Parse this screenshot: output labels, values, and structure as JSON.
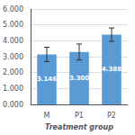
{
  "chart_data": {
    "type": "bar",
    "xlabel": "Treatment group",
    "categories": [
      "M",
      "P1",
      "P2"
    ],
    "values": [
      3.146,
      3.3,
      4.388
    ],
    "errors": [
      0.45,
      0.5,
      0.42
    ],
    "value_labels": [
      "3.146",
      "3.300",
      "4.388"
    ],
    "data_labels": true,
    "color": "#5b9bd5",
    "ylim": [
      0,
      6.0
    ],
    "yticks": [
      {
        "value": 0,
        "label": "0.000"
      },
      {
        "value": 1,
        "label": "1.000"
      },
      {
        "value": 2,
        "label": "2.000"
      },
      {
        "value": 3,
        "label": "3.000"
      },
      {
        "value": 4,
        "label": "4.000"
      },
      {
        "value": 5,
        "label": "5.000"
      },
      {
        "value": 6,
        "label": "6.000"
      }
    ],
    "grid": true
  }
}
